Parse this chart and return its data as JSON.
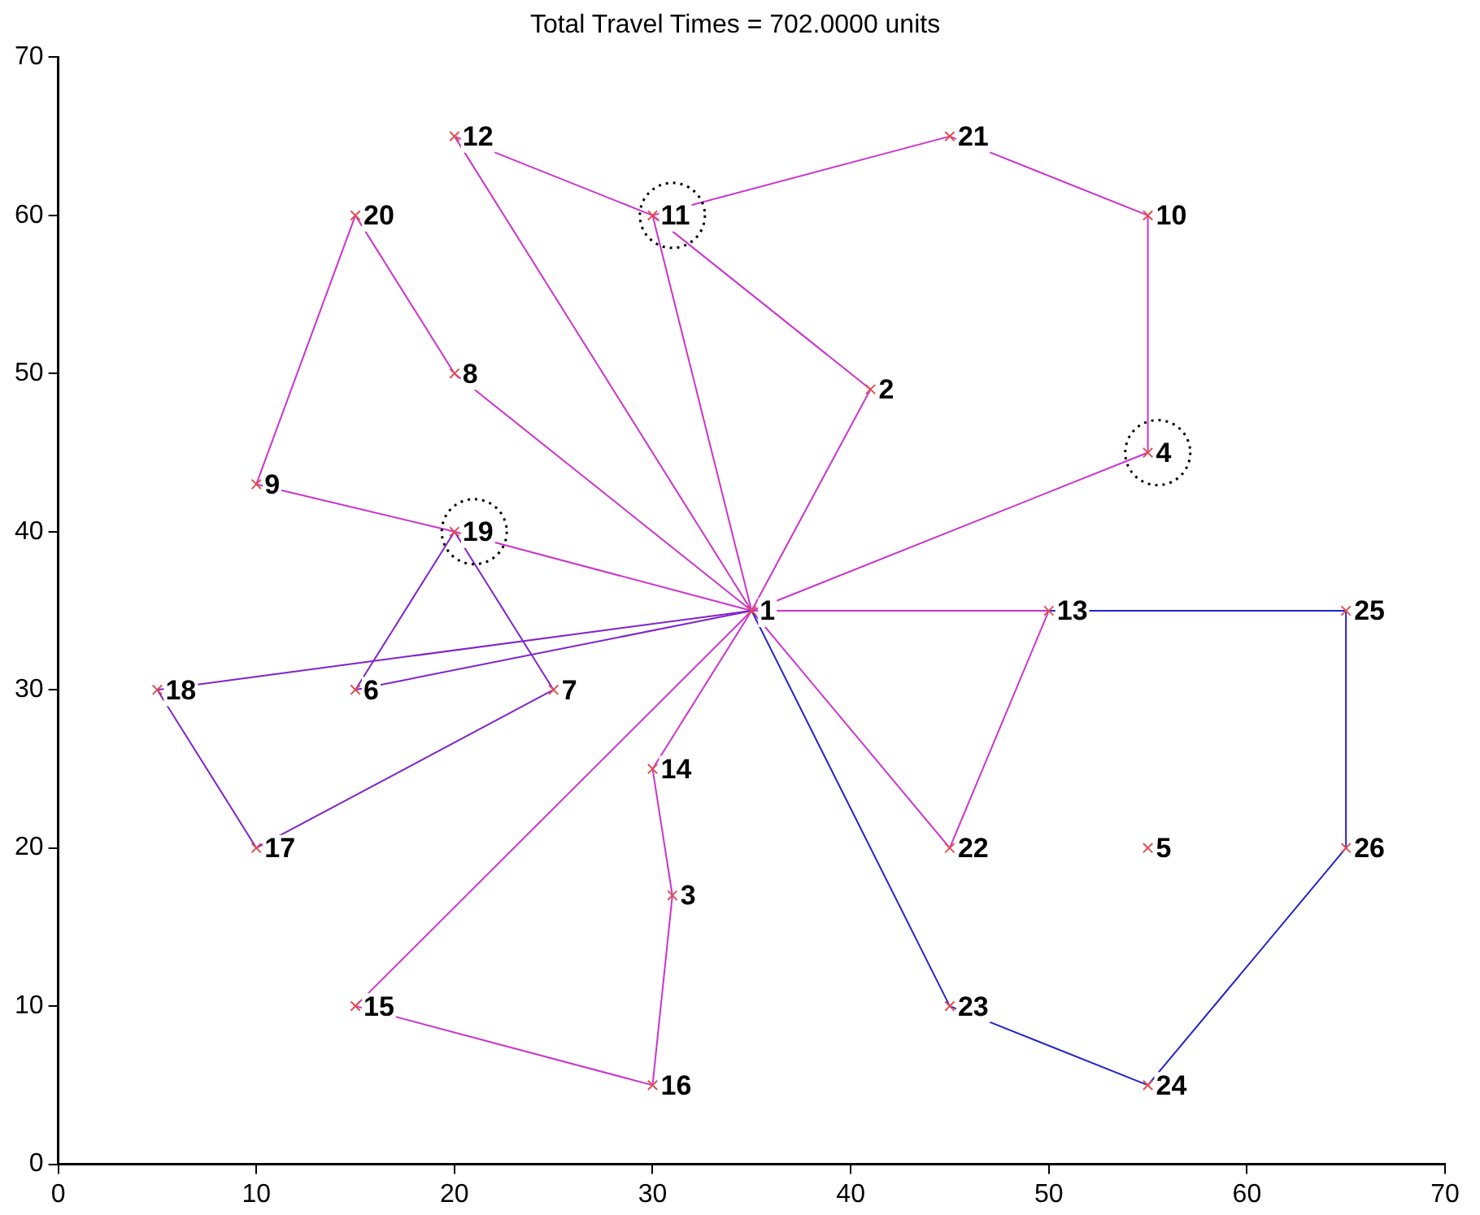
{
  "chart_data": {
    "type": "scatter",
    "title": "Total Travel Times = 702.0000 units",
    "xlim": [
      0,
      70
    ],
    "ylim": [
      0,
      70
    ],
    "xticks": [
      0,
      10,
      20,
      30,
      40,
      50,
      60,
      70
    ],
    "yticks": [
      0,
      10,
      20,
      30,
      40,
      50,
      60,
      70
    ],
    "grid": false,
    "legend": false,
    "series": [
      {
        "type": "line",
        "color": "#cc33cc",
        "marker": "none",
        "x": [
          20,
          35
        ],
        "values": [
          65,
          35
        ]
      },
      {
        "type": "line",
        "color": "#cc33cc",
        "marker": "none",
        "x": [
          20,
          30,
          45,
          55
        ],
        "values": [
          65,
          60,
          65,
          60
        ]
      },
      {
        "type": "line",
        "color": "#cc33cc",
        "marker": "none",
        "x": [
          35,
          55,
          55
        ],
        "values": [
          35,
          45,
          60
        ]
      },
      {
        "type": "line",
        "color": "#cc33cc",
        "marker": "none",
        "x": [
          35,
          41
        ],
        "values": [
          35,
          49
        ]
      },
      {
        "type": "line",
        "color": "#cc33cc",
        "marker": "none",
        "x": [
          30,
          41
        ],
        "values": [
          60,
          49
        ]
      },
      {
        "type": "line",
        "color": "#cc33cc",
        "marker": "none",
        "x": [
          30,
          35
        ],
        "values": [
          60,
          35
        ]
      },
      {
        "type": "line",
        "color": "#cc33cc",
        "marker": "none",
        "x": [
          20,
          35
        ],
        "values": [
          50,
          35
        ]
      },
      {
        "type": "line",
        "color": "#cc33cc",
        "marker": "none",
        "x": [
          15,
          20
        ],
        "values": [
          60,
          50
        ]
      },
      {
        "type": "line",
        "color": "#cc33cc",
        "marker": "none",
        "x": [
          10,
          15
        ],
        "values": [
          43,
          60
        ]
      },
      {
        "type": "line",
        "color": "#cc33cc",
        "marker": "none",
        "x": [
          10,
          20,
          35
        ],
        "values": [
          43,
          40,
          35
        ]
      },
      {
        "type": "line",
        "color": "#7f22cc",
        "marker": "none",
        "x": [
          5,
          35
        ],
        "values": [
          30,
          35
        ]
      },
      {
        "type": "line",
        "color": "#7f22cc",
        "marker": "none",
        "x": [
          5,
          10,
          25
        ],
        "values": [
          30,
          20,
          30
        ]
      },
      {
        "type": "line",
        "color": "#7f22cc",
        "marker": "none",
        "x": [
          20,
          25
        ],
        "values": [
          40,
          30
        ]
      },
      {
        "type": "line",
        "color": "#7f22cc",
        "marker": "none",
        "x": [
          15,
          20
        ],
        "values": [
          30,
          40
        ]
      },
      {
        "type": "line",
        "color": "#7f22cc",
        "marker": "none",
        "x": [
          15,
          35
        ],
        "values": [
          30,
          35
        ]
      },
      {
        "type": "line",
        "color": "#cc33cc",
        "marker": "none",
        "x": [
          30,
          35
        ],
        "values": [
          25,
          35
        ]
      },
      {
        "type": "line",
        "color": "#cc33cc",
        "marker": "none",
        "x": [
          30,
          31
        ],
        "values": [
          25,
          17
        ]
      },
      {
        "type": "line",
        "color": "#cc33cc",
        "marker": "none",
        "x": [
          30,
          31
        ],
        "values": [
          5,
          17
        ]
      },
      {
        "type": "line",
        "color": "#cc33cc",
        "marker": "none",
        "x": [
          15,
          30
        ],
        "values": [
          10,
          5
        ]
      },
      {
        "type": "line",
        "color": "#cc33cc",
        "marker": "none",
        "x": [
          15,
          35
        ],
        "values": [
          10,
          35
        ]
      },
      {
        "type": "line",
        "color": "#cc33cc",
        "marker": "none",
        "x": [
          35,
          45
        ],
        "values": [
          35,
          20
        ]
      },
      {
        "type": "line",
        "color": "#cc33cc",
        "marker": "none",
        "x": [
          45,
          50
        ],
        "values": [
          20,
          35
        ]
      },
      {
        "type": "line",
        "color": "#cc33cc",
        "marker": "none",
        "x": [
          35,
          50
        ],
        "values": [
          35,
          35
        ]
      },
      {
        "type": "line",
        "color": "#2222cc",
        "marker": "none",
        "x": [
          35,
          45,
          55,
          65
        ],
        "values": [
          35,
          10,
          5,
          20
        ]
      },
      {
        "type": "line",
        "color": "#2222cc",
        "marker": "none",
        "x": [
          65,
          65
        ],
        "values": [
          20,
          35
        ]
      },
      {
        "type": "line",
        "color": "#2222cc",
        "marker": "none",
        "x": [
          50,
          65
        ],
        "values": [
          35,
          35
        ]
      },
      {
        "color": "#e05050",
        "marker": "cross",
        "x": [
          35,
          41,
          31,
          55,
          55,
          15,
          25,
          20,
          10,
          55,
          30,
          20,
          50,
          30,
          15,
          30,
          10,
          5,
          20,
          15,
          45,
          45,
          45,
          55,
          65,
          65
        ],
        "values": [
          35,
          49,
          17,
          45,
          20,
          30,
          30,
          50,
          43,
          60,
          60,
          65,
          35,
          25,
          10,
          5,
          20,
          30,
          40,
          60,
          65,
          20,
          10,
          5,
          35,
          20
        ]
      },
      {
        "type": "scatter",
        "color": "#000000",
        "marker": "circle",
        "line_style": "dotted",
        "x": [
          31,
          55.5,
          21
        ],
        "values": [
          60,
          45,
          40
        ]
      }
    ],
    "annotations": [
      {
        "text": "1",
        "x": 35,
        "y": 35
      },
      {
        "text": "2",
        "x": 41,
        "y": 49
      },
      {
        "text": "3",
        "x": 31,
        "y": 17
      },
      {
        "text": "4",
        "x": 55,
        "y": 45
      },
      {
        "text": "5",
        "x": 55,
        "y": 20
      },
      {
        "text": "6",
        "x": 15,
        "y": 30
      },
      {
        "text": "7",
        "x": 25,
        "y": 30
      },
      {
        "text": "8",
        "x": 20,
        "y": 50
      },
      {
        "text": "9",
        "x": 10,
        "y": 43
      },
      {
        "text": "10",
        "x": 55,
        "y": 60
      },
      {
        "text": "11",
        "x": 30,
        "y": 60
      },
      {
        "text": "12",
        "x": 20,
        "y": 65
      },
      {
        "text": "13",
        "x": 50,
        "y": 35
      },
      {
        "text": "14",
        "x": 30,
        "y": 25
      },
      {
        "text": "15",
        "x": 15,
        "y": 10
      },
      {
        "text": "16",
        "x": 30,
        "y": 5
      },
      {
        "text": "17",
        "x": 10,
        "y": 20
      },
      {
        "text": "18",
        "x": 5,
        "y": 30
      },
      {
        "text": "19",
        "x": 20,
        "y": 40
      },
      {
        "text": "20",
        "x": 15,
        "y": 60
      },
      {
        "text": "21",
        "x": 45,
        "y": 65
      },
      {
        "text": "22",
        "x": 45,
        "y": 20
      },
      {
        "text": "23",
        "x": 45,
        "y": 10
      },
      {
        "text": "24",
        "x": 55,
        "y": 5
      },
      {
        "text": "25",
        "x": 65,
        "y": 35
      },
      {
        "text": "26",
        "x": 65,
        "y": 20
      }
    ]
  }
}
